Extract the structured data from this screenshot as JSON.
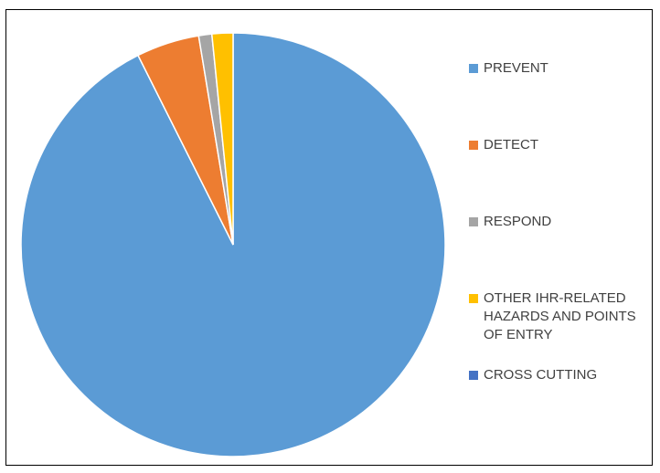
{
  "chart_data": {
    "type": "pie",
    "title": "",
    "legend_position": "right",
    "categories": [
      "PREVENT",
      "DETECT",
      "RESPOND",
      "OTHER IHR-RELATED HAZARDS AND POINTS OF ENTRY",
      "CROSS CUTTING"
    ],
    "values": [
      92.6,
      4.8,
      1.0,
      1.6,
      0.0
    ],
    "colors": [
      "#5B9BD5",
      "#ED7D31",
      "#A5A5A5",
      "#FFC000",
      "#4472C4"
    ]
  }
}
